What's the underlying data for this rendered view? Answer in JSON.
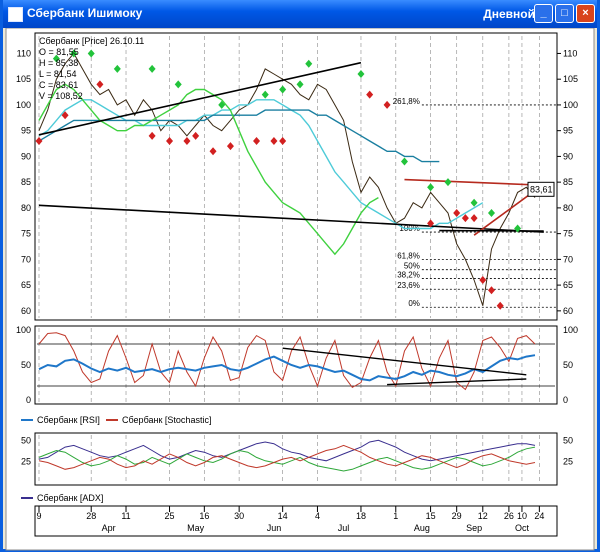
{
  "window": {
    "title": "Сбербанк Ишимоку",
    "mode": "Дневной",
    "buttons": {
      "minimize": "_",
      "maximize": "□",
      "close": "×"
    }
  },
  "chart_data": [
    {
      "type": "line",
      "panel": "price",
      "title": "Сбербанк [Price] 26.10.11",
      "ohlc": {
        "O": "O = 81,55",
        "H": "H = 85,38",
        "L": "L = 81,54",
        "C": "C = 83,61",
        "V": "V = 108,52"
      },
      "ylim": [
        59,
        113
      ],
      "yticks": [
        60,
        65,
        70,
        75,
        80,
        85,
        90,
        95,
        100,
        105,
        110
      ],
      "last_value_label": "83,61",
      "series": [
        {
          "values": [
            95,
            99,
            105,
            108,
            110,
            107,
            104,
            102,
            103,
            100,
            101,
            98,
            101,
            99,
            95,
            97,
            96,
            94,
            96,
            98,
            96,
            95,
            97,
            99,
            100,
            103,
            107,
            106,
            105,
            104,
            102,
            101,
            104,
            103,
            100,
            97,
            89,
            83,
            86,
            84,
            80,
            77,
            78,
            81,
            80,
            83,
            81,
            79,
            73,
            70,
            66,
            61,
            72,
            76,
            79,
            83,
            84,
            82
          ],
          "color": "#3b2a14"
        },
        {
          "values": [
            94,
            95,
            97,
            99,
            100,
            101,
            101,
            100,
            99,
            98,
            97,
            97,
            96,
            96,
            96,
            96,
            96,
            97,
            97,
            98,
            98,
            99,
            99,
            100,
            100,
            101,
            101,
            101,
            100,
            99,
            98,
            96,
            93,
            90,
            87,
            85,
            83,
            81,
            80,
            79,
            78,
            77,
            76,
            76,
            76,
            76,
            77,
            77,
            78,
            79,
            80,
            81
          ],
          "color": "#4ecbd8"
        },
        {
          "values": [
            93,
            94,
            95,
            96,
            97,
            97,
            97,
            97,
            97,
            97,
            97,
            97,
            97,
            97,
            97,
            97,
            97,
            97,
            97,
            97,
            98,
            98,
            98,
            98,
            98,
            98,
            99,
            99,
            99,
            99,
            99,
            99,
            98,
            98,
            97,
            96,
            95,
            94,
            93,
            92,
            91,
            91,
            90,
            90,
            89,
            89,
            89
          ],
          "color": "#1a7fa0"
        },
        {
          "values": [
            97,
            100,
            103,
            104,
            103,
            101,
            99,
            97,
            96,
            95,
            95,
            96,
            96,
            97,
            98,
            99,
            100,
            102,
            103,
            103,
            102,
            101,
            99,
            95,
            91,
            88,
            85,
            83,
            81,
            80,
            79,
            77,
            75,
            73,
            71,
            73,
            76,
            79,
            81,
            82
          ],
          "color": "#3fd13f"
        }
      ],
      "fib_levels": [
        {
          "label": "261,8%",
          "y": 100
        },
        {
          "label": "100%",
          "y": 75.3
        },
        {
          "label": "61,8%",
          "y": 70
        },
        {
          "label": "50%",
          "y": 68
        },
        {
          "label": "38,2%",
          "y": 66.3
        },
        {
          "label": "23,6%",
          "y": 64.2
        },
        {
          "label": "0%",
          "y": 60.7
        }
      ],
      "trendlines": [
        {
          "from": [
            0,
            80.5
          ],
          "to": [
            58,
            75.3
          ],
          "color": "#000000"
        },
        {
          "from": [
            0,
            94.2
          ],
          "to": [
            37,
            108.2
          ],
          "color": "#000000"
        },
        {
          "from": [
            42,
            85.5
          ],
          "to": [
            58,
            84.4
          ],
          "color": "#b62a1e"
        },
        {
          "from": [
            50,
            74.7
          ],
          "to": [
            58,
            84.6
          ],
          "color": "#b62a1e"
        },
        {
          "from": [
            46,
            75.6
          ],
          "to": [
            58,
            75.5
          ],
          "color": "#000000"
        }
      ],
      "markers_up": [
        [
          2,
          109
        ],
        [
          4,
          110
        ],
        [
          6,
          110
        ],
        [
          9,
          107
        ],
        [
          13,
          107
        ],
        [
          16,
          104
        ],
        [
          21,
          100
        ],
        [
          26,
          102
        ],
        [
          28,
          103
        ],
        [
          30,
          104
        ],
        [
          31,
          108
        ],
        [
          37,
          106
        ],
        [
          42,
          89
        ],
        [
          45,
          84
        ],
        [
          47,
          85
        ],
        [
          50,
          81
        ],
        [
          52,
          79
        ],
        [
          55,
          76
        ]
      ],
      "markers_down": [
        [
          0,
          93
        ],
        [
          3,
          98
        ],
        [
          7,
          104
        ],
        [
          13,
          94
        ],
        [
          15,
          93
        ],
        [
          17,
          93
        ],
        [
          18,
          94
        ],
        [
          20,
          91
        ],
        [
          22,
          92
        ],
        [
          25,
          93
        ],
        [
          27,
          93
        ],
        [
          28,
          93
        ],
        [
          38,
          102
        ],
        [
          40,
          100
        ],
        [
          45,
          77
        ],
        [
          48,
          79
        ],
        [
          49,
          78
        ],
        [
          50,
          78
        ],
        [
          51,
          66
        ],
        [
          52,
          64
        ],
        [
          53,
          61
        ]
      ]
    },
    {
      "type": "line",
      "panel": "oscillators",
      "legend": [
        "Сбербанк [RSI]",
        "Сбербанк [Stochastic]"
      ],
      "ylim": [
        0,
        100
      ],
      "yticks": [
        0,
        50,
        100
      ],
      "levels": [
        20,
        80
      ],
      "series": [
        {
          "name": "Сбербанк [RSI]",
          "values": [
            44,
            50,
            48,
            56,
            58,
            52,
            45,
            40,
            45,
            42,
            46,
            40,
            42,
            44,
            40,
            44,
            46,
            44,
            42,
            46,
            48,
            50,
            44,
            42,
            46,
            52,
            58,
            62,
            56,
            50,
            46,
            50,
            48,
            44,
            40,
            42,
            36,
            30,
            28,
            34,
            32,
            30,
            34,
            40,
            36,
            42,
            40,
            36,
            34,
            38,
            44,
            40,
            48,
            56,
            60,
            58,
            62,
            64
          ],
          "color": "#1f77c9"
        },
        {
          "name": "Сбербанк [Stochastic]",
          "values": [
            80,
            95,
            96,
            92,
            70,
            40,
            25,
            30,
            70,
            92,
            60,
            25,
            35,
            80,
            40,
            25,
            70,
            40,
            20,
            60,
            90,
            70,
            28,
            32,
            75,
            92,
            85,
            40,
            28,
            70,
            90,
            50,
            20,
            60,
            85,
            35,
            18,
            25,
            60,
            85,
            40,
            20,
            70,
            90,
            45,
            20,
            60,
            85,
            25,
            15,
            40,
            85,
            90,
            75,
            55,
            88,
            92,
            80
          ],
          "color": "#c0392b"
        }
      ],
      "trendlines": [
        {
          "from": [
            28,
            74
          ],
          "to": [
            56,
            36
          ],
          "color": "#000000"
        },
        {
          "from": [
            40,
            22
          ],
          "to": [
            56,
            30
          ],
          "color": "#000000"
        }
      ]
    },
    {
      "type": "line",
      "panel": "adx",
      "legend": [
        "Сбербанк [ADX]"
      ],
      "ylim": [
        0,
        55
      ],
      "yticks": [
        25,
        50
      ],
      "series": [
        {
          "name": "Сбербанк [ADX]",
          "values": [
            28,
            30,
            36,
            42,
            44,
            40,
            36,
            32,
            30,
            32,
            36,
            40,
            44,
            38,
            32,
            28,
            30,
            34,
            38,
            36,
            32,
            30,
            34,
            38,
            42,
            46,
            48,
            46,
            40,
            36,
            34,
            30,
            28,
            26,
            30,
            34,
            38,
            42,
            48,
            50,
            46,
            42,
            36,
            32,
            28,
            26,
            28,
            30,
            32,
            34,
            36,
            38,
            40,
            42,
            44,
            46,
            46,
            44
          ],
          "color": "#3a2f8f"
        },
        {
          "name": "+DI",
          "values": [
            30,
            34,
            38,
            36,
            30,
            24,
            20,
            22,
            26,
            32,
            28,
            22,
            24,
            30,
            26,
            22,
            28,
            34,
            30,
            26,
            24,
            28,
            34,
            38,
            36,
            30,
            26,
            24,
            22,
            26,
            30,
            24,
            20,
            18,
            16,
            14,
            16,
            20,
            24,
            28,
            30,
            26,
            22,
            18,
            16,
            18,
            22,
            26,
            30,
            28,
            24,
            20,
            22,
            26,
            30,
            36,
            40,
            42
          ],
          "color": "#2fa83a"
        },
        {
          "name": "-DI",
          "values": [
            26,
            24,
            20,
            16,
            18,
            22,
            26,
            30,
            28,
            22,
            18,
            20,
            26,
            22,
            28,
            34,
            30,
            24,
            20,
            24,
            30,
            32,
            28,
            24,
            20,
            18,
            20,
            24,
            28,
            30,
            26,
            30,
            34,
            38,
            40,
            44,
            40,
            36,
            30,
            26,
            22,
            20,
            24,
            28,
            32,
            30,
            26,
            22,
            18,
            22,
            28,
            32,
            34,
            30,
            26,
            24,
            22,
            24
          ],
          "color": "#c0392b"
        }
      ]
    }
  ],
  "time_axis": {
    "day_ticks": [
      {
        "label": "9",
        "i": 0
      },
      {
        "label": "28",
        "i": 6
      },
      {
        "label": "11",
        "i": 10
      },
      {
        "label": "25",
        "i": 15
      },
      {
        "label": "16",
        "i": 19
      },
      {
        "label": "30",
        "i": 23
      },
      {
        "label": "14",
        "i": 28
      },
      {
        "label": "4",
        "i": 32
      },
      {
        "label": "18",
        "i": 37
      },
      {
        "label": "1",
        "i": 41
      },
      {
        "label": "15",
        "i": 45
      },
      {
        "label": "29",
        "i": 48
      },
      {
        "label": "12",
        "i": 51
      },
      {
        "label": "26",
        "i": 54
      },
      {
        "label": "10",
        "i": 55.5
      },
      {
        "label": "24",
        "i": 57.5
      }
    ],
    "month_labels": [
      {
        "label": "Apr",
        "i": 8
      },
      {
        "label": "May",
        "i": 18
      },
      {
        "label": "Jun",
        "i": 27
      },
      {
        "label": "Jul",
        "i": 35
      },
      {
        "label": "Aug",
        "i": 44
      },
      {
        "label": "Sep",
        "i": 50
      },
      {
        "label": "Oct",
        "i": 55.5
      }
    ]
  }
}
